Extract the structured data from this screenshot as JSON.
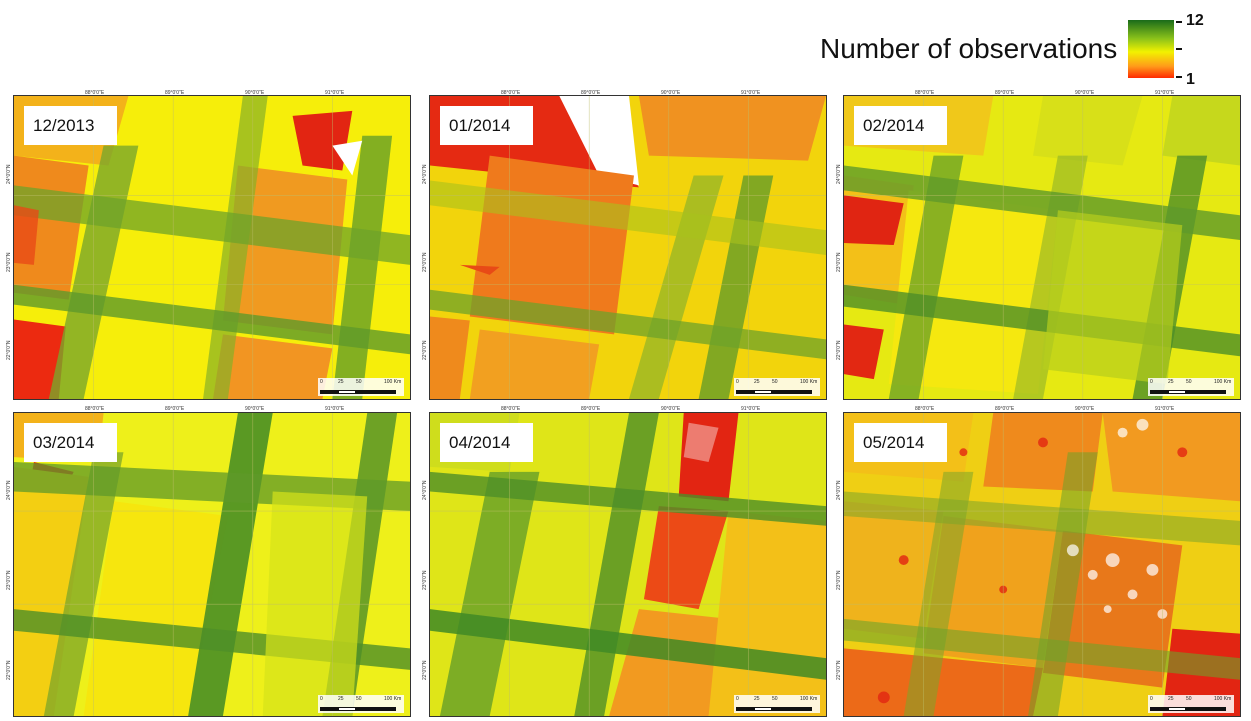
{
  "legend": {
    "title": "Number of observations",
    "max_label": "12",
    "min_label": "1",
    "colors": {
      "high": "#1a6b1a",
      "mid": "#f2f200",
      "low": "#ff2a00"
    }
  },
  "panels": [
    {
      "label": "12/2013"
    },
    {
      "label": "01/2014"
    },
    {
      "label": "02/2014"
    },
    {
      "label": "03/2014"
    },
    {
      "label": "04/2014"
    },
    {
      "label": "05/2014"
    }
  ],
  "graticule": {
    "lon_labels": [
      "88°0'0\"E",
      "89°0'0\"E",
      "90°0'0\"E",
      "91°0'0\"E"
    ],
    "lat_labels": [
      "24°0'0\"N",
      "23°0'0\"N",
      "22°0'0\"N"
    ]
  },
  "scalebar": {
    "labels": [
      "0",
      "25",
      "50",
      "100 Km"
    ]
  }
}
